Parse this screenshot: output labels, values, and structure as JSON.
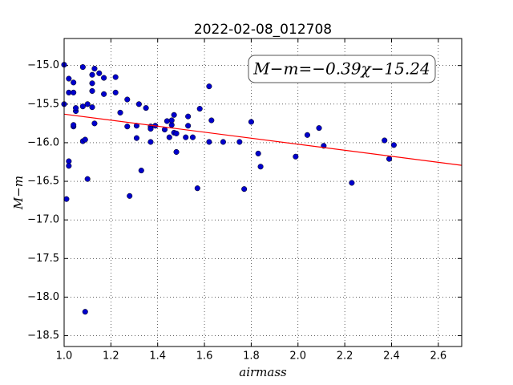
{
  "chart_data": {
    "type": "scatter",
    "title": "2022-02-08_012708",
    "x_label": "airmass",
    "y_label": "M−m",
    "annotation": "M−m=−0.39χ−15.24",
    "xlim": [
      1.0,
      2.7
    ],
    "ylim": [
      -18.64,
      -14.65
    ],
    "xticks": [
      {
        "value": 1.0,
        "label": "1.0"
      },
      1.2,
      1.4,
      1.6,
      1.8,
      {
        "value": 2.0,
        "label": "2.0"
      },
      2.2,
      2.4,
      2.6
    ],
    "yticks": [
      {
        "value": -15.0,
        "label": "−15.0"
      },
      {
        "value": -15.5,
        "label": "−15.5"
      },
      {
        "value": -16.0,
        "label": "−16.0"
      },
      {
        "value": -16.5,
        "label": "−16.5"
      },
      {
        "value": -17.0,
        "label": "−17.0"
      },
      {
        "value": -17.5,
        "label": "−17.5"
      },
      {
        "value": -18.0,
        "label": "−18.0"
      },
      {
        "value": -18.5,
        "label": "−18.5"
      }
    ],
    "grid": true,
    "series": [
      {
        "type": "scatter",
        "color": "#0000cc",
        "x": [
          1.0,
          1.0,
          1.01,
          1.02,
          1.02,
          1.02,
          1.02,
          1.04,
          1.04,
          1.04,
          1.04,
          1.05,
          1.05,
          1.08,
          1.08,
          1.08,
          1.09,
          1.1,
          1.1,
          1.09,
          1.12,
          1.12,
          1.12,
          1.12,
          1.13,
          1.13,
          1.15,
          1.17,
          1.17,
          1.22,
          1.22,
          1.24,
          1.27,
          1.27,
          1.28,
          1.31,
          1.31,
          1.32,
          1.33,
          1.35,
          1.37,
          1.37,
          1.37,
          1.39,
          1.43,
          1.44,
          1.45,
          1.46,
          1.46,
          1.47,
          1.47,
          1.48,
          1.48,
          1.52,
          1.53,
          1.53,
          1.55,
          1.57,
          1.58,
          1.62,
          1.62,
          1.63,
          1.68,
          1.75,
          1.77,
          1.8,
          1.83,
          1.84,
          1.99,
          2.04,
          2.09,
          2.11,
          2.23,
          2.37,
          2.39,
          2.41
        ],
        "values": [
          -14.99,
          -15.5,
          -16.73,
          -15.17,
          -16.24,
          -16.3,
          -15.35,
          -15.35,
          -15.22,
          -15.79,
          -15.77,
          -15.59,
          -15.55,
          -15.53,
          -15.02,
          -15.98,
          -15.96,
          -16.47,
          -15.5,
          -18.19,
          -15.54,
          -15.12,
          -15.23,
          -15.33,
          -15.75,
          -15.04,
          -15.1,
          -15.16,
          -15.37,
          -15.15,
          -15.35,
          -15.61,
          -15.79,
          -15.44,
          -16.69,
          -15.94,
          -15.78,
          -15.5,
          -16.36,
          -15.55,
          -15.79,
          -15.82,
          -15.99,
          -15.78,
          -15.83,
          -15.72,
          -15.93,
          -15.77,
          -15.71,
          -15.64,
          -15.87,
          -15.88,
          -16.12,
          -15.93,
          -15.78,
          -15.66,
          -15.93,
          -16.59,
          -15.56,
          -15.27,
          -15.99,
          -15.71,
          -15.99,
          -15.99,
          -16.6,
          -15.73,
          -16.14,
          -16.31,
          -16.18,
          -15.9,
          -15.81,
          -16.04,
          -16.52,
          -15.97,
          -16.21,
          -16.03
        ]
      },
      {
        "type": "line",
        "color": "#ff0000",
        "x": [
          1.0,
          2.7
        ],
        "values": [
          -15.63,
          -16.293
        ]
      }
    ]
  }
}
